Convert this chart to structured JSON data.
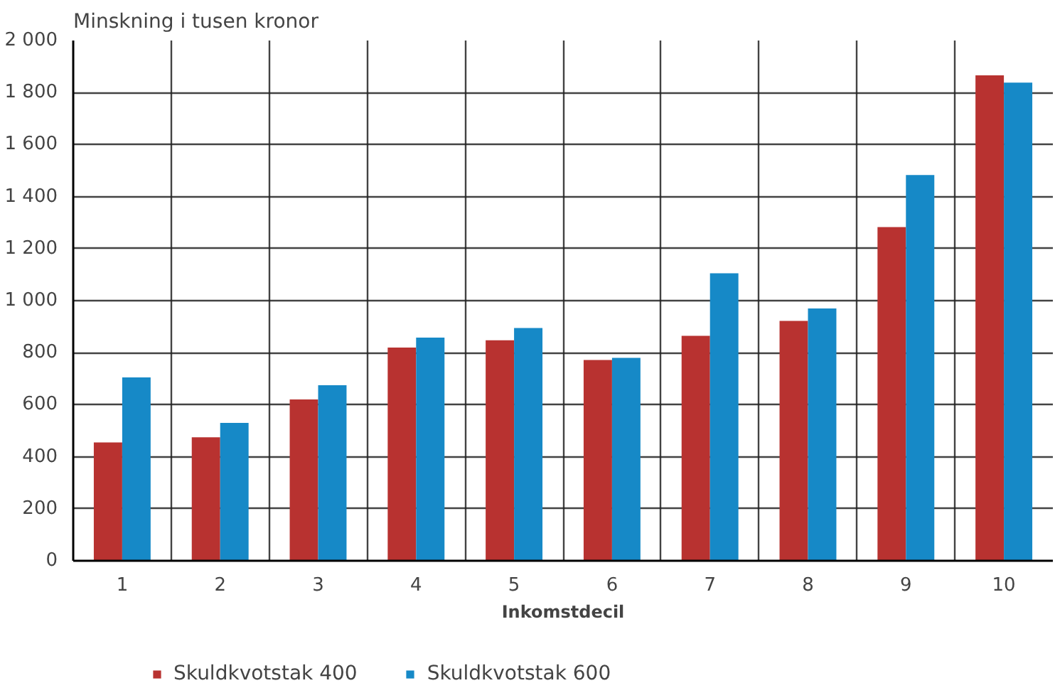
{
  "chart_data": {
    "type": "bar",
    "title": "Minskning i tusen kronor",
    "xlabel": "Inkomstdecil",
    "categories": [
      "1",
      "2",
      "3",
      "4",
      "5",
      "6",
      "7",
      "8",
      "9",
      "10"
    ],
    "series": [
      {
        "name": "Skuldkvotstak 400",
        "color": "#b83230",
        "values": [
          455,
          475,
          620,
          820,
          848,
          772,
          865,
          922,
          1283,
          1866
        ]
      },
      {
        "name": "Skuldkvotstak 600",
        "color": "#1689c7",
        "values": [
          705,
          530,
          675,
          858,
          895,
          780,
          1105,
          970,
          1483,
          1838
        ]
      }
    ],
    "ylim": [
      0,
      2000
    ],
    "yticks": [
      0,
      200,
      400,
      600,
      800,
      {
        "value": 1000,
        "label": "1 000"
      },
      {
        "value": 1200,
        "label": "1 200"
      },
      {
        "value": 1400,
        "label": "1 400"
      },
      {
        "value": 1600,
        "label": "1 600"
      },
      {
        "value": 1800,
        "label": "1 800"
      },
      {
        "value": 2000,
        "label": "2 000"
      }
    ],
    "grid": true,
    "legend": "bottom left"
  }
}
